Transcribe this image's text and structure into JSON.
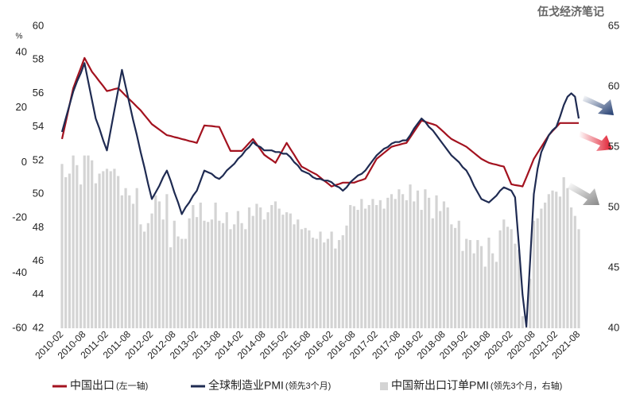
{
  "chart_data": {
    "type": "bar-line",
    "watermark": "伍戈经济笔记",
    "unit_label": "%",
    "categories": [
      "2010-02",
      null,
      null,
      null,
      null,
      null,
      "2010-08",
      null,
      null,
      null,
      null,
      null,
      "2011-02",
      null,
      null,
      null,
      null,
      null,
      "2011-08",
      null,
      null,
      null,
      null,
      null,
      "2012-02",
      null,
      null,
      null,
      null,
      null,
      "2012-08",
      null,
      null,
      null,
      null,
      null,
      "2013-02",
      null,
      null,
      null,
      null,
      null,
      "2013-08",
      null,
      null,
      null,
      null,
      null,
      "2014-02",
      null,
      null,
      null,
      null,
      null,
      "2014-08",
      null,
      null,
      null,
      null,
      null,
      "2015-02",
      null,
      null,
      null,
      null,
      null,
      "2015-08",
      null,
      null,
      null,
      null,
      null,
      "2016-02",
      null,
      null,
      null,
      null,
      null,
      "2016-08",
      null,
      null,
      null,
      null,
      null,
      "2017-02",
      null,
      null,
      null,
      null,
      null,
      "2017-08",
      null,
      null,
      null,
      null,
      null,
      "2018-02",
      null,
      null,
      null,
      null,
      null,
      "2018-08",
      null,
      null,
      null,
      null,
      null,
      "2019-02",
      null,
      null,
      null,
      null,
      null,
      "2019-08",
      null,
      null,
      null,
      null,
      null,
      "2020-02",
      null,
      null,
      null,
      null,
      null,
      "2020-08",
      null,
      null,
      null,
      null,
      null,
      "2021-02",
      null,
      null,
      null,
      null,
      null,
      "2021-08"
    ],
    "ylim": [
      -60,
      49.5
    ],
    "yticks": [
      -60,
      -40,
      -20,
      0,
      20,
      40
    ],
    "y3lim": [
      42,
      60
    ],
    "y3ticks": [
      42,
      44,
      46,
      48,
      50,
      52,
      54,
      56,
      58,
      60
    ],
    "y2lim": [
      40,
      65
    ],
    "y2ticks": [
      40,
      45,
      50,
      55,
      60,
      65
    ],
    "series": [
      {
        "name": "中国新出口订单PMI",
        "note": "(领先3个月，右轴)",
        "kind": "bar",
        "axis": "y2",
        "color": "#d4d4d4",
        "values": [
          53.6,
          52.5,
          52.8,
          54.3,
          53.5,
          51.9,
          54.3,
          54.3,
          53.9,
          52.0,
          52.8,
          53.0,
          53.2,
          53.0,
          53.2,
          52.6,
          51.0,
          51.6,
          51.0,
          50.3,
          51.6,
          48.6,
          48.0,
          48.7,
          49.5,
          51.0,
          50.5,
          49.0,
          51.1,
          46.7,
          48.9,
          47.6,
          47.4,
          47.4,
          49.1,
          50.2,
          49.2,
          50.4,
          48.9,
          48.8,
          49.0,
          50.4,
          48.9,
          48.7,
          49.6,
          48.2,
          48.6,
          49.7,
          48.7,
          48.2,
          50.0,
          49.3,
          50.3,
          50.0,
          49.0,
          49.6,
          50.2,
          50.5,
          49.9,
          49.4,
          49.6,
          49.5,
          48.6,
          49.0,
          48.2,
          48.3,
          48.1,
          47.5,
          47.4,
          48.0,
          47.1,
          47.4,
          48.0,
          46.6,
          47.3,
          47.7,
          48.5,
          50.2,
          50.1,
          49.8,
          50.7,
          49.9,
          50.2,
          50.7,
          50.2,
          50.6,
          49.9,
          50.8,
          51.1,
          50.7,
          51.5,
          51.1,
          50.6,
          51.9,
          50.5,
          51.4,
          49.8,
          51.5,
          50.8,
          49.1,
          51.0,
          49.7,
          50.5,
          50.0,
          48.6,
          48.3,
          48.9,
          46.4,
          47.4,
          47.3,
          46.2,
          47.3,
          46.8,
          45.1,
          47.5,
          46.2,
          45.5,
          48.1,
          49.0,
          48.4,
          48.2,
          47.0,
          46.5,
          41.0,
          40.1,
          44.1,
          48.9,
          49.1,
          49.9,
          50.4,
          51.1,
          51.4,
          51.3,
          50.9,
          52.5,
          51.6,
          50.0,
          49.3,
          48.2
        ]
      },
      {
        "name": "中国出口",
        "note": "(左一轴)",
        "kind": "line",
        "axis": "y",
        "color": "#a3121f",
        "values": [
          8.6,
          14.7,
          20.9,
          27.0,
          30.7,
          34.3,
          38.0,
          35.5,
          33.0,
          31.3,
          29.5,
          27.8,
          26.0,
          26.3,
          26.7,
          27.0,
          25.7,
          24.3,
          23.0,
          21.7,
          20.3,
          19.0,
          17.3,
          15.7,
          14.0,
          13.0,
          12.0,
          11.0,
          10.0,
          9.7,
          9.3,
          9.0,
          8.6,
          8.3,
          7.9,
          7.6,
          7.2,
          10.4,
          13.5,
          13.4,
          13.3,
          13.1,
          13.0,
          10.1,
          7.2,
          4.3,
          4.3,
          4.3,
          4.3,
          5.7,
          7.2,
          8.6,
          6.7,
          4.8,
          2.9,
          1.9,
          1.0,
          0,
          2.4,
          4.8,
          7.2,
          5.0,
          2.9,
          0.7,
          -1.4,
          -2.1,
          -2.9,
          -3.6,
          -4.3,
          -5.4,
          -6.5,
          -7.5,
          -8.6,
          -8.1,
          -7.7,
          -7.2,
          -7.2,
          -7.2,
          -7.2,
          -6.7,
          -6.3,
          -5.8,
          -3.4,
          -1.0,
          1.4,
          2.5,
          3.6,
          4.7,
          5.8,
          6.2,
          6.5,
          6.9,
          7.2,
          9.2,
          11.3,
          13.3,
          15.3,
          14.9,
          14.4,
          14.0,
          13.5,
          12.3,
          11.1,
          9.8,
          8.6,
          7.9,
          7.2,
          6.5,
          5.8,
          4.7,
          3.6,
          2.5,
          1.4,
          0.7,
          0,
          -0.4,
          -0.7,
          -1.1,
          -1.4,
          -4.6,
          -7.8,
          -8.1,
          -8.3,
          -8.6,
          -5.3,
          -2.0,
          1.4,
          3.6,
          5.7,
          7.9,
          10.0,
          11.5,
          12.9,
          14.4,
          14.4,
          14.4,
          14.4,
          14.4,
          14.4
        ]
      },
      {
        "name": "全球制造业PMI",
        "note": "(领先3个月)",
        "kind": "line",
        "axis": "y3",
        "color": "#1f2b52",
        "values": [
          53.7,
          54.5,
          55.3,
          56.1,
          56.7,
          57.2,
          57.8,
          56.7,
          55.6,
          54.5,
          53.9,
          53.2,
          52.6,
          53.8,
          55.0,
          56.2,
          57.4,
          56.4,
          55.4,
          54.4,
          53.5,
          52.5,
          51.6,
          50.6,
          49.7,
          50.1,
          50.5,
          51.0,
          51.4,
          50.8,
          50.1,
          49.5,
          48.8,
          49.2,
          49.5,
          49.9,
          50.2,
          50.8,
          51.4,
          51.3,
          51.2,
          51.0,
          50.9,
          51.1,
          51.4,
          51.6,
          51.8,
          52.1,
          52.3,
          52.6,
          52.8,
          53.1,
          52.9,
          52.8,
          52.6,
          52.6,
          52.6,
          52.5,
          52.5,
          52.4,
          52.4,
          52.2,
          51.9,
          51.7,
          51.4,
          51.3,
          51.2,
          51.0,
          50.9,
          50.9,
          50.8,
          50.8,
          50.7,
          50.5,
          50.4,
          50.2,
          50.4,
          50.7,
          50.9,
          51.1,
          51.2,
          51.4,
          51.7,
          52.0,
          52.3,
          52.5,
          52.7,
          52.8,
          53.0,
          53.1,
          53.1,
          53.2,
          53.2,
          53.5,
          53.9,
          54.2,
          54.5,
          54.3,
          54.0,
          53.8,
          53.5,
          53.2,
          52.9,
          52.6,
          52.3,
          52.1,
          51.9,
          51.6,
          51.4,
          51.0,
          50.5,
          50.1,
          49.7,
          49.6,
          49.5,
          49.7,
          49.9,
          50.2,
          50.4,
          50.3,
          50.2,
          49.8,
          47.0,
          44.0,
          42.1,
          46.0,
          50.0,
          51.5,
          52.5,
          53.0,
          53.5,
          53.8,
          54.0,
          54.6,
          55.3,
          55.8,
          56.0,
          55.8,
          54.5
        ]
      }
    ]
  }
}
